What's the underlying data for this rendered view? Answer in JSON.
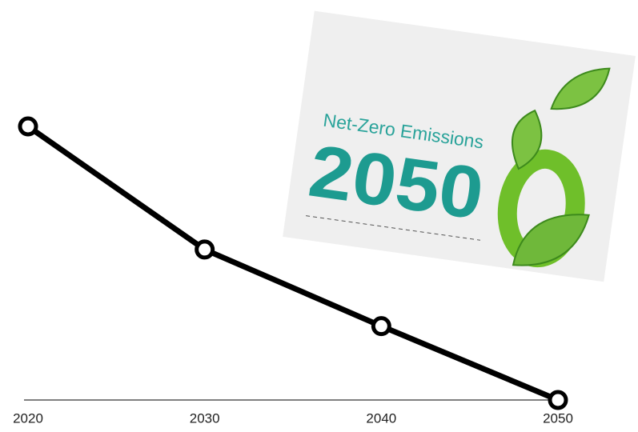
{
  "chart_data": {
    "type": "line",
    "categories": [
      "2020",
      "2030",
      "2040",
      "2050"
    ],
    "values": [
      100,
      55,
      27,
      0
    ],
    "color": "#000000",
    "ylim": [
      0,
      100
    ],
    "image": {
      "caption": "Net-Zero Emissions",
      "year": "2050"
    }
  }
}
